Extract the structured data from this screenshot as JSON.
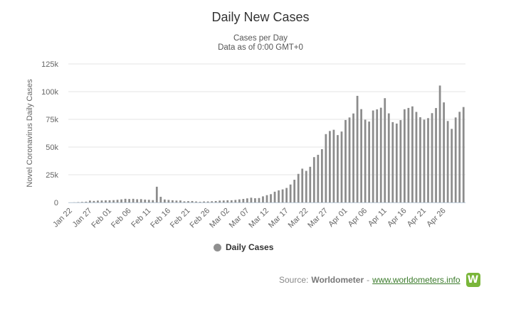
{
  "colors": {
    "bar": "#8c8c8c",
    "grid": "#e6e6e6",
    "axis_text": "#666666",
    "link": "#3a7a2a",
    "logo_bg": "#7ab63a"
  },
  "legend": {
    "label": "Daily Cases"
  },
  "source": {
    "prefix": "Source:",
    "brand": "Worldometer",
    "dash": "-",
    "link_text": "www.worldometers.info",
    "logo_letter": "W"
  },
  "chart_data": {
    "type": "bar",
    "title": "Daily New Cases",
    "subtitle": [
      "Cases per Day",
      "Data as of 0:00 GMT+0"
    ],
    "xlabel": "",
    "ylabel": "Novel Coronavirus Daily Cases",
    "ylim": [
      0,
      125000
    ],
    "yticks": [
      0,
      25000,
      50000,
      75000,
      100000,
      125000
    ],
    "ytick_labels": [
      "0",
      "25k",
      "50k",
      "75k",
      "100k",
      "125k"
    ],
    "grid": true,
    "legend_position": "bottom-center",
    "xtick_labels": [
      "Jan 22",
      "Jan 27",
      "Feb 01",
      "Feb 06",
      "Feb 11",
      "Feb 16",
      "Feb 21",
      "Feb 26",
      "Mar 02",
      "Mar 07",
      "Mar 12",
      "Mar 17",
      "Mar 22",
      "Mar 27",
      "Apr 01",
      "Apr 06",
      "Apr 11",
      "Apr 16",
      "Apr 21",
      "Apr 26"
    ],
    "xtick_every": 5,
    "series": [
      {
        "name": "Daily Cases",
        "values": [
          0,
          100,
          300,
          500,
          700,
          1700,
          1400,
          1700,
          1800,
          1900,
          2000,
          2100,
          2400,
          2800,
          3300,
          3100,
          3300,
          2900,
          3000,
          2600,
          2400,
          2100,
          14200,
          5100,
          2700,
          2300,
          2000,
          1700,
          1800,
          1000,
          1200,
          1300,
          900,
          600,
          900,
          900,
          1100,
          1300,
          1700,
          1800,
          2000,
          2000,
          2300,
          2800,
          3200,
          3700,
          4300,
          3800,
          4000,
          5500,
          6600,
          7500,
          9700,
          10900,
          11800,
          13100,
          16200,
          20500,
          25800,
          30500,
          28500,
          32200,
          40900,
          43000,
          48100,
          61700,
          64500,
          65600,
          60800,
          64000,
          74400,
          76700,
          80300,
          96200,
          84200,
          74700,
          73000,
          83000,
          84000,
          85500,
          94100,
          80400,
          72500,
          71200,
          74300,
          84100,
          85300,
          86700,
          81700,
          76900,
          74700,
          76100,
          80600,
          85200,
          105500,
          90300,
          73500,
          66400,
          76700,
          81800,
          86100
        ]
      }
    ]
  }
}
